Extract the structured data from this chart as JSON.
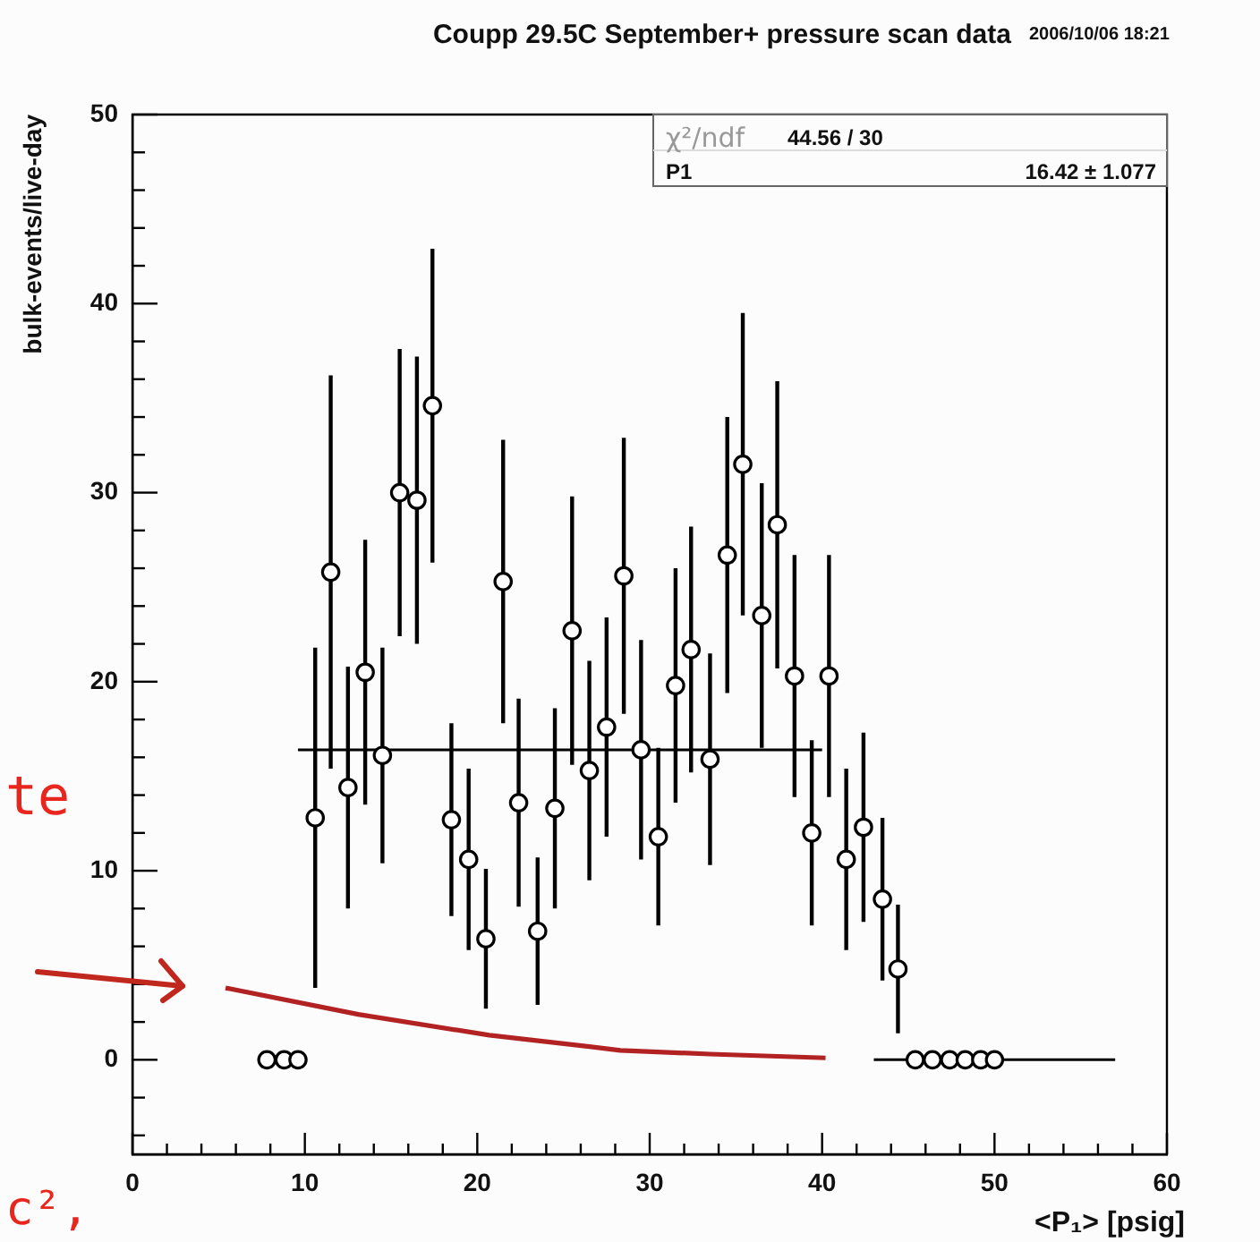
{
  "chart_data": {
    "type": "scatter",
    "title": "Coupp 29.5C September+ pressure scan data",
    "xlabel": "<P₁> [psig]",
    "ylabel": "bulk-events/live-day",
    "annotations": [
      "2006/10/06 18:21",
      "χ²/ndf",
      "44.56 / 30",
      "P1",
      "16.42 ± 1.077",
      "te",
      "c²,"
    ],
    "xlim": [
      0,
      60
    ],
    "ylim": [
      -5,
      50
    ],
    "xticks": [
      0,
      {
        "value": 2,
        "label": null
      },
      {
        "value": 4,
        "label": null
      },
      {
        "value": 6,
        "label": null
      },
      {
        "value": 8,
        "label": null
      },
      10,
      {
        "value": 12,
        "label": null
      },
      {
        "value": 14,
        "label": null
      },
      {
        "value": 16,
        "label": null
      },
      {
        "value": 18,
        "label": null
      },
      20,
      {
        "value": 22,
        "label": null
      },
      {
        "value": 24,
        "label": null
      },
      {
        "value": 26,
        "label": null
      },
      {
        "value": 28,
        "label": null
      },
      30,
      {
        "value": 32,
        "label": null
      },
      {
        "value": 34,
        "label": null
      },
      {
        "value": 36,
        "label": null
      },
      {
        "value": 38,
        "label": null
      },
      40,
      {
        "value": 42,
        "label": null
      },
      {
        "value": 44,
        "label": null
      },
      {
        "value": 46,
        "label": null
      },
      {
        "value": 48,
        "label": null
      },
      50,
      {
        "value": 52,
        "label": null
      },
      {
        "value": 54,
        "label": null
      },
      {
        "value": 56,
        "label": null
      },
      {
        "value": 58,
        "label": null
      },
      60
    ],
    "yticks": [
      {
        "value": -4,
        "label": null
      },
      {
        "value": -2,
        "label": null
      },
      0,
      {
        "value": 2,
        "label": null
      },
      {
        "value": 4,
        "label": null
      },
      {
        "value": 6,
        "label": null
      },
      {
        "value": 8,
        "label": null
      },
      10,
      {
        "value": 12,
        "label": null
      },
      {
        "value": 14,
        "label": null
      },
      {
        "value": 16,
        "label": null
      },
      {
        "value": 18,
        "label": null
      },
      20,
      {
        "value": 22,
        "label": null
      },
      {
        "value": 24,
        "label": null
      },
      {
        "value": 26,
        "label": null
      },
      {
        "value": 28,
        "label": null
      },
      30,
      {
        "value": 32,
        "label": null
      },
      {
        "value": 34,
        "label": null
      },
      {
        "value": 36,
        "label": null
      },
      {
        "value": 38,
        "label": null
      },
      40,
      {
        "value": 42,
        "label": null
      },
      {
        "value": 44,
        "label": null
      },
      {
        "value": 46,
        "label": null
      },
      {
        "value": 48,
        "label": null
      },
      50
    ],
    "marker": "circle",
    "legend": false,
    "series": [
      {
        "type": "line",
        "marker": "none",
        "color": "#000000",
        "x": [
          9.6,
          40
        ],
        "values": [
          16.4,
          16.4
        ]
      },
      {
        "type": "line",
        "marker": "none",
        "color": "#000000",
        "x": [
          43,
          57
        ],
        "values": [
          0,
          0
        ]
      },
      {
        "type": "line",
        "marker": "none",
        "color": "#b22222",
        "x": [
          5.4,
          13.1,
          20.7,
          26.5,
          28.3,
          33.5,
          40.2
        ],
        "values": [
          3.8,
          2.4,
          1.3,
          0.7,
          0.5,
          0.3,
          0.1
        ]
      },
      {
        "color": "#000000",
        "x": [
          7.8,
          8.8,
          9.6,
          10.6,
          11.5,
          12.5,
          13.5,
          14.5,
          15.5,
          16.5,
          17.4,
          18.5,
          19.5,
          20.5,
          21.5,
          22.4,
          23.5,
          24.5,
          25.5,
          26.5,
          27.5,
          28.5,
          29.5,
          30.5,
          31.5,
          32.4,
          33.5,
          34.5,
          35.4,
          36.5,
          37.4,
          38.4,
          39.4,
          40.4,
          41.4,
          42.4,
          43.5,
          44.4,
          45.4,
          46.4,
          47.4,
          48.3,
          49.2,
          50.0
        ],
        "values": [
          0,
          0,
          0,
          12.8,
          25.8,
          14.4,
          20.5,
          16.1,
          30.0,
          29.6,
          34.6,
          12.7,
          10.6,
          6.4,
          25.3,
          13.6,
          6.8,
          13.3,
          22.7,
          15.3,
          17.6,
          25.6,
          16.4,
          11.8,
          19.8,
          21.7,
          15.9,
          26.7,
          31.5,
          23.5,
          28.3,
          20.3,
          12.0,
          20.3,
          10.6,
          12.3,
          8.5,
          4.8,
          0,
          0,
          0,
          0,
          0,
          0
        ],
        "errors": [
          null,
          null,
          null,
          9,
          10.4,
          6.4,
          7,
          5.7,
          7.6,
          7.6,
          8.3,
          5.1,
          4.8,
          3.7,
          7.5,
          5.5,
          3.9,
          5.3,
          7.1,
          5.8,
          5.8,
          7.3,
          5.8,
          4.7,
          6.2,
          6.5,
          5.6,
          7.3,
          8,
          7,
          7.6,
          6.4,
          4.9,
          6.4,
          4.8,
          5,
          4.3,
          3.4,
          null,
          null,
          null,
          null,
          null,
          null
        ]
      }
    ]
  }
}
